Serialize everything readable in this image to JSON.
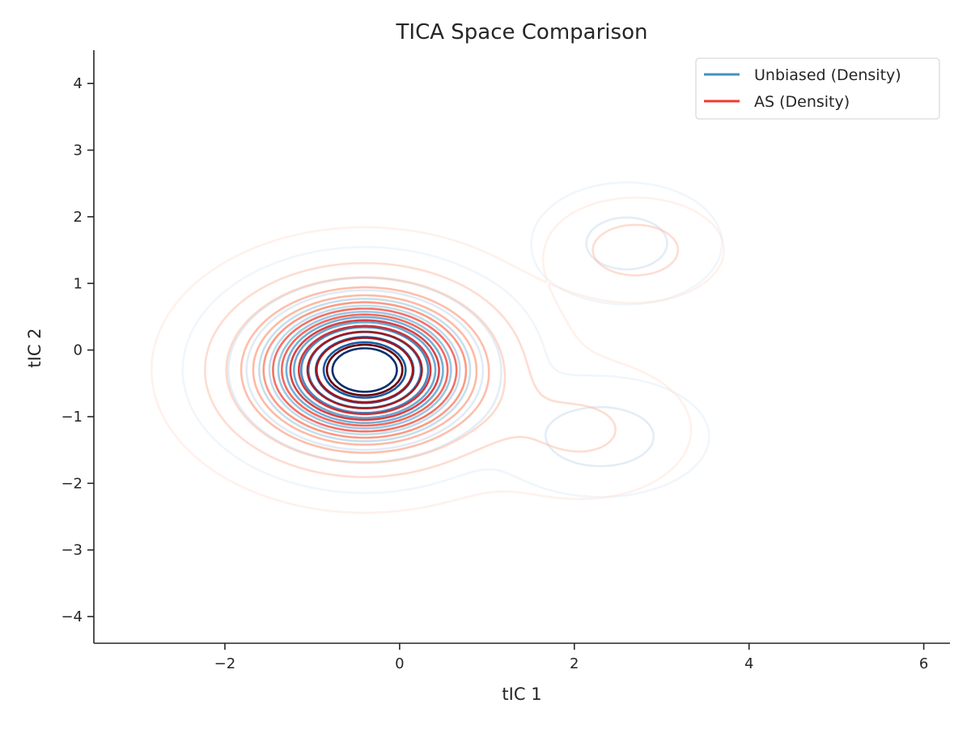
{
  "chart_data": {
    "type": "contour",
    "title": "TICA Space Comparison",
    "xlabel": "tIC 1",
    "ylabel": "tIC 2",
    "xlim": [
      -3.5,
      6.3
    ],
    "ylim": [
      -4.4,
      4.5
    ],
    "xticks": [
      -2,
      0,
      2,
      4,
      6
    ],
    "yticks": [
      -4,
      -3,
      -2,
      -1,
      0,
      1,
      2,
      3,
      4
    ],
    "legend_position": "upper right",
    "grid": false,
    "series": [
      {
        "name": "Unbiased (Density)",
        "color": "#4292c6",
        "colormap": "Blues",
        "peaks": [
          {
            "x": -0.4,
            "y": -0.3,
            "weight": 0.78,
            "spread_x": 0.7,
            "spread_y": 0.62
          },
          {
            "x": 2.3,
            "y": -1.3,
            "weight": 0.12,
            "spread_x": 0.55,
            "spread_y": 0.4
          },
          {
            "x": 2.6,
            "y": 1.6,
            "weight": 0.1,
            "spread_x": 0.5,
            "spread_y": 0.42
          }
        ]
      },
      {
        "name": "AS (Density)",
        "color": "#ef3b2c",
        "colormap": "Reds",
        "peaks": [
          {
            "x": -0.4,
            "y": -0.3,
            "weight": 0.8,
            "spread_x": 0.82,
            "spread_y": 0.72
          },
          {
            "x": 2.7,
            "y": 1.5,
            "weight": 0.12,
            "spread_x": 0.45,
            "spread_y": 0.35
          },
          {
            "x": 2.1,
            "y": -1.2,
            "weight": 0.08,
            "spread_x": 0.6,
            "spread_y": 0.5
          }
        ]
      }
    ]
  }
}
